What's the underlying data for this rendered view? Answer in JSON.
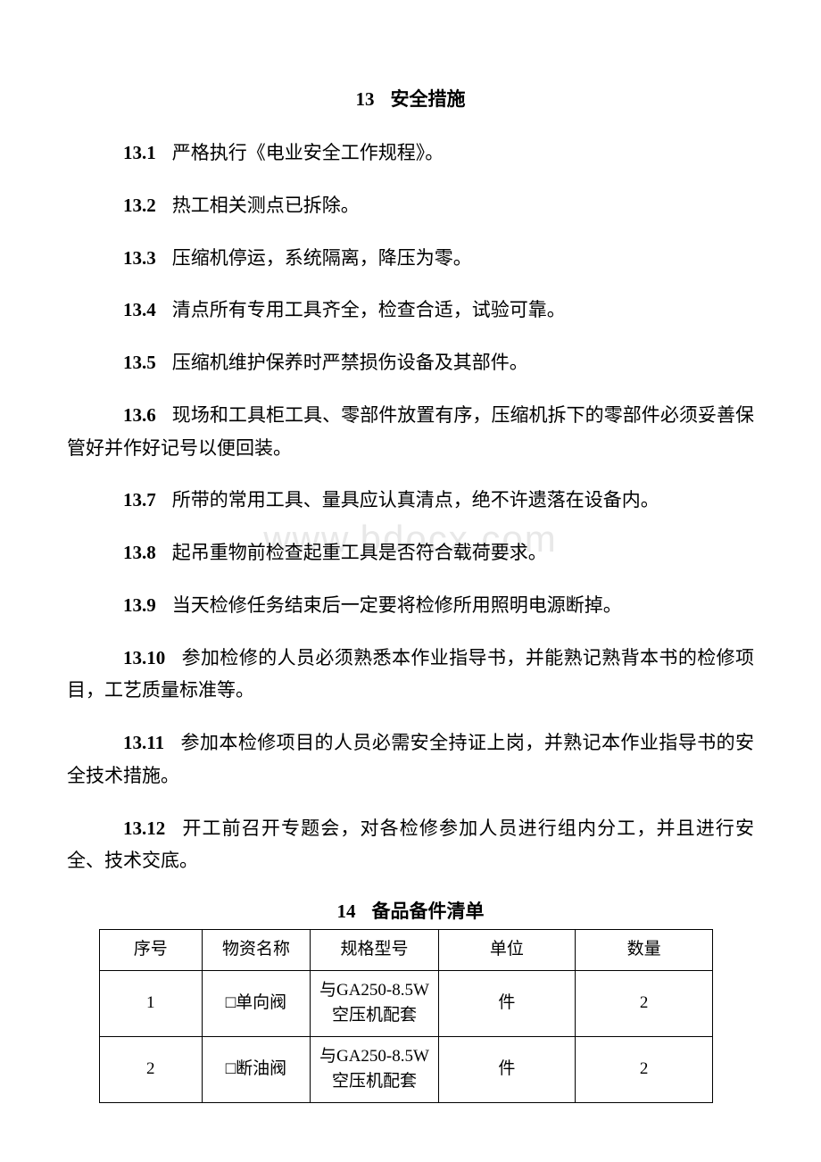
{
  "watermark": "www.bdocx.com",
  "section13": {
    "number": "13",
    "title": "安全措施",
    "items": [
      {
        "num": "13.1",
        "text": "严格执行《电业安全工作规程》。"
      },
      {
        "num": "13.2",
        "text": "热工相关测点已拆除。"
      },
      {
        "num": "13.3",
        "text": "压缩机停运，系统隔离，降压为零。"
      },
      {
        "num": "13.4",
        "text": "清点所有专用工具齐全，检查合适，试验可靠。"
      },
      {
        "num": "13.5",
        "text": "压缩机维护保养时严禁损伤设备及其部件。"
      },
      {
        "num": "13.6",
        "text": "现场和工具柜工具、零部件放置有序，压缩机拆下的零部件必须妥善保管好并作好记号以便回装。"
      },
      {
        "num": "13.7",
        "text": "所带的常用工具、量具应认真清点，绝不许遗落在设备内。"
      },
      {
        "num": "13.8",
        "text": "起吊重物前检查起重工具是否符合载荷要求。"
      },
      {
        "num": "13.9",
        "text": "当天检修任务结束后一定要将检修所用照明电源断掉。"
      },
      {
        "num": "13.10",
        "text": "参加检修的人员必须熟悉本作业指导书，并能熟记熟背本书的检修项目，工艺质量标准等。"
      },
      {
        "num": "13.11",
        "text": "参加本检修项目的人员必需安全持证上岗，并熟记本作业指导书的安全技术措施。"
      },
      {
        "num": "13.12",
        "text": "开工前召开专题会，对各检修参加人员进行组内分工，并且进行安全、技术交底。"
      }
    ]
  },
  "section14": {
    "number": "14",
    "title": "备品备件清单",
    "table": {
      "headers": {
        "seq": "序号",
        "name": "物资名称",
        "spec": "规格型号",
        "unit": "单位",
        "qty": "数量"
      },
      "rows": [
        {
          "seq": "1",
          "name": "□单向阀",
          "spec": "与GA250-8.5W空压机配套",
          "unit": "件",
          "qty": "2"
        },
        {
          "seq": "2",
          "name": "□断油阀",
          "spec": "与GA250-8.5W空压机配套",
          "unit": "件",
          "qty": "2"
        }
      ]
    }
  }
}
